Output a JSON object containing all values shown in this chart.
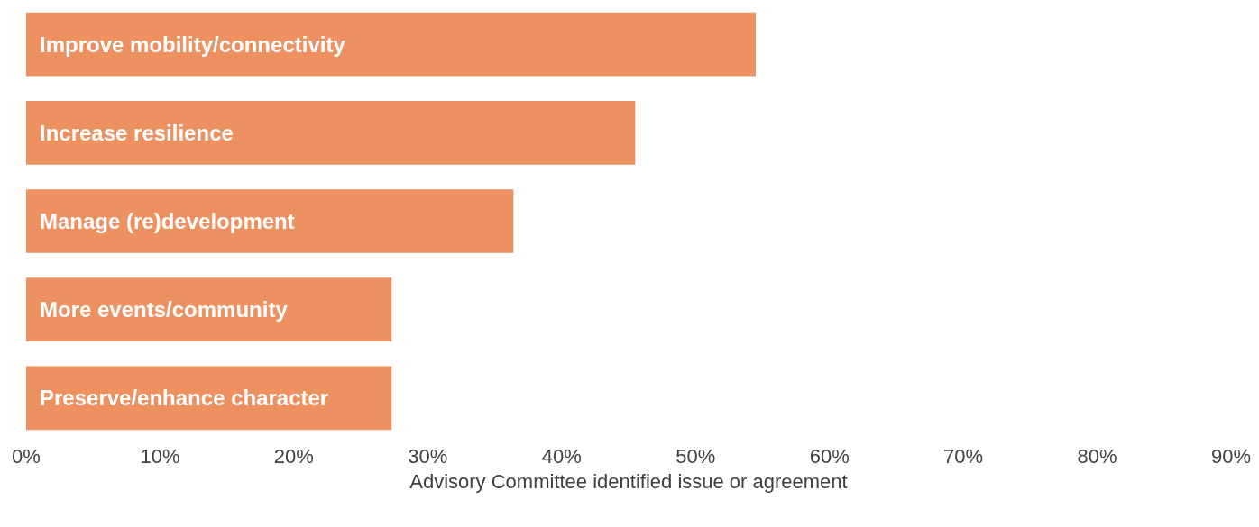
{
  "chart_data": {
    "type": "bar",
    "orientation": "horizontal",
    "xlabel": "Advisory Committee identified issue or agreement",
    "categories": [
      "Improve mobility/connectivity",
      "Increase resilience",
      "Manage (re)development",
      "More events/community",
      "Preserve/enhance character"
    ],
    "values": [
      54.5,
      45.5,
      36.4,
      27.3,
      27.3
    ],
    "color": "#ed9161",
    "xlim": [
      0,
      90
    ],
    "xticks": [
      {
        "value": 0,
        "label": "0%"
      },
      {
        "value": 10,
        "label": "10%"
      },
      {
        "value": 20,
        "label": "20%"
      },
      {
        "value": 30,
        "label": "30%"
      },
      {
        "value": 40,
        "label": "40%"
      },
      {
        "value": 50,
        "label": "50%"
      },
      {
        "value": 60,
        "label": "60%"
      },
      {
        "value": 70,
        "label": "70%"
      },
      {
        "value": 80,
        "label": "80%"
      },
      {
        "value": 90,
        "label": "90%"
      }
    ],
    "grid": false
  }
}
